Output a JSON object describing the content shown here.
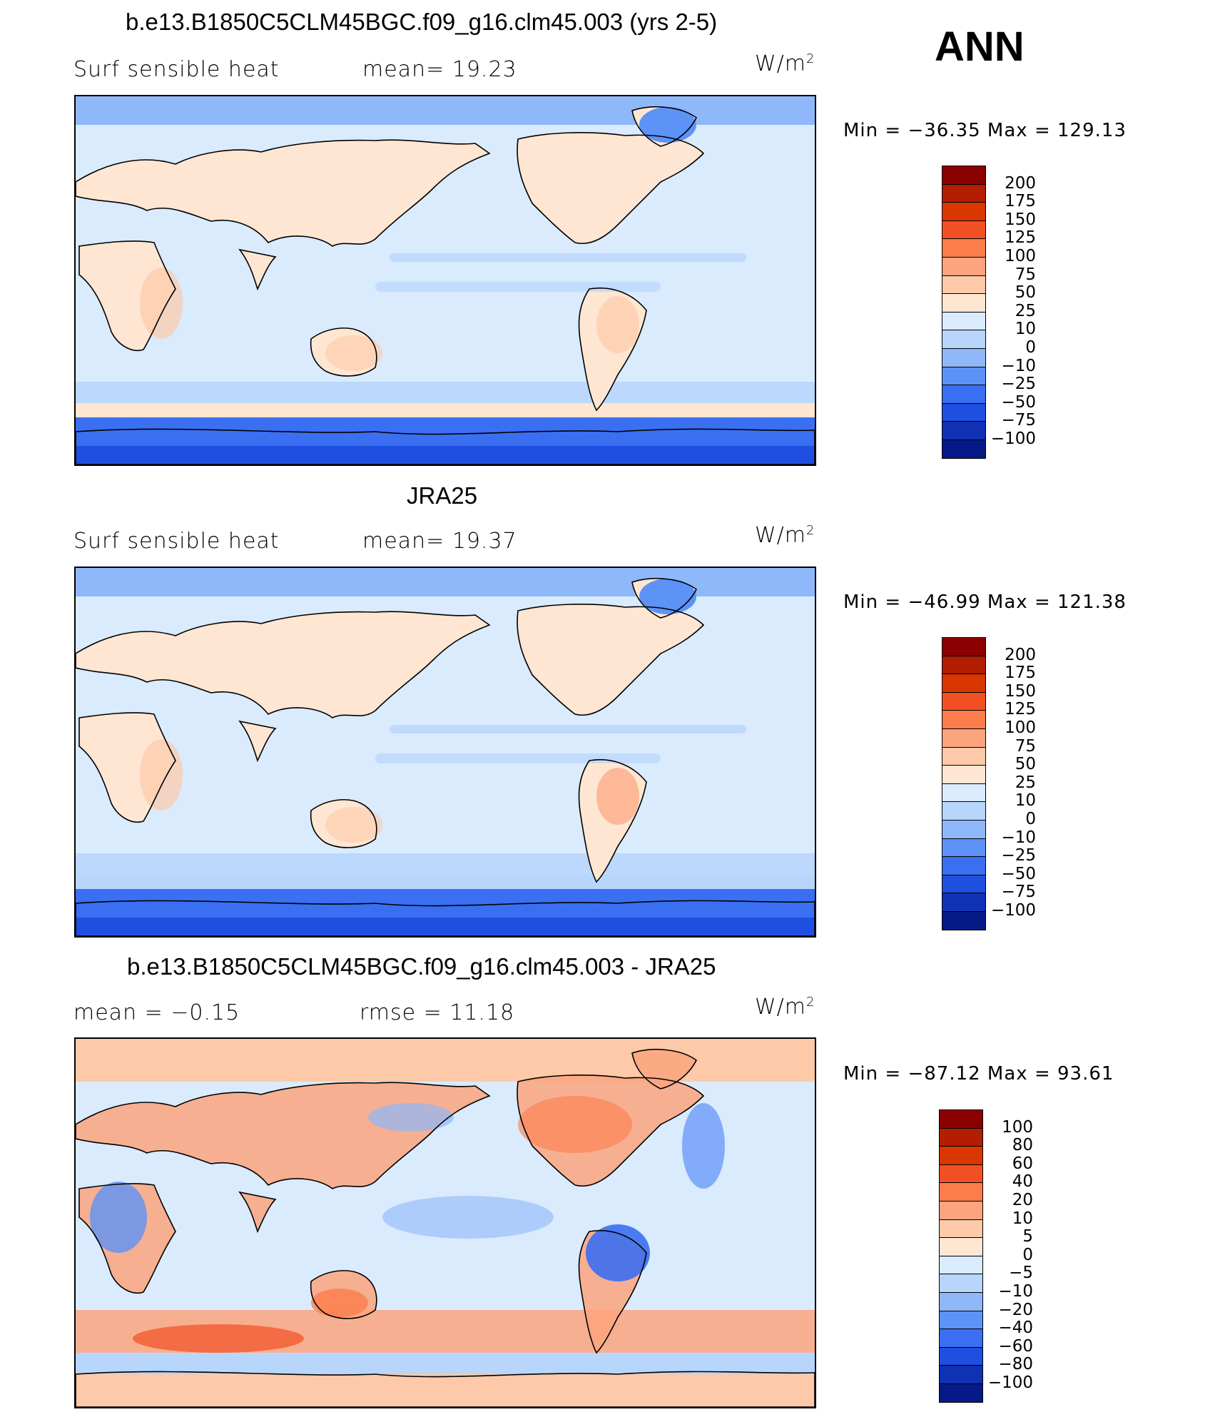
{
  "season": "ANN",
  "panels": [
    {
      "title": "b.e13.B1850C5CLM45BGC.f09_g16.clm45.003 (yrs 2-5)",
      "left_label": "Surf  sensible  heat",
      "mid_label": "mean=   19.23",
      "units": "W/m",
      "units_sup": "2",
      "minmax": "Min  =  −36.35  Max  =  129.13",
      "colorbar": {
        "labels": [
          "200",
          "175",
          "150",
          "125",
          "100",
          "75",
          "50",
          "25",
          "10",
          "0",
          "−10",
          "−25",
          "−50",
          "−75",
          "−100"
        ],
        "colors": [
          "#8b0000",
          "#b31d00",
          "#d93600",
          "#f25022",
          "#fb7d4b",
          "#fca47e",
          "#fdc9a8",
          "#fee6d2",
          "#d9ebfd",
          "#b8d6fc",
          "#8fb8fa",
          "#5d92f6",
          "#3a6ff2",
          "#1f4fe0",
          "#0f31b4",
          "#061a87"
        ]
      },
      "field": "model"
    },
    {
      "title": "JRA25",
      "left_label": "Surf  sensible  heat",
      "mid_label": "mean=   19.37",
      "units": "W/m",
      "units_sup": "2",
      "minmax": "Min  =  −46.99  Max  =  121.38",
      "colorbar": {
        "labels": [
          "200",
          "175",
          "150",
          "125",
          "100",
          "75",
          "50",
          "25",
          "10",
          "0",
          "−10",
          "−25",
          "−50",
          "−75",
          "−100"
        ],
        "colors": [
          "#8b0000",
          "#b31d00",
          "#d93600",
          "#f25022",
          "#fb7d4b",
          "#fca47e",
          "#fdc9a8",
          "#fee6d2",
          "#d9ebfd",
          "#b8d6fc",
          "#8fb8fa",
          "#5d92f6",
          "#3a6ff2",
          "#1f4fe0",
          "#0f31b4",
          "#061a87"
        ]
      },
      "field": "obs"
    },
    {
      "title": "b.e13.B1850C5CLM45BGC.f09_g16.clm45.003 - JRA25",
      "left_label": "mean  =    −0.15",
      "mid_label": "rmse  =    11.18",
      "units": "W/m",
      "units_sup": "2",
      "minmax": "Min  =  −87.12  Max  =    93.61",
      "colorbar": {
        "labels": [
          "100",
          "80",
          "60",
          "40",
          "20",
          "10",
          "5",
          "0",
          "−5",
          "−10",
          "−20",
          "−40",
          "−60",
          "−80",
          "−100"
        ],
        "colors": [
          "#8b0000",
          "#b31d00",
          "#d93600",
          "#f25022",
          "#fb7d4b",
          "#fca47e",
          "#fdc9a8",
          "#fee6d2",
          "#d9ebfd",
          "#b8d6fc",
          "#8fb8fa",
          "#5d92f6",
          "#3a6ff2",
          "#1f4fe0",
          "#0f31b4",
          "#061a87"
        ]
      },
      "field": "diff"
    }
  ]
}
